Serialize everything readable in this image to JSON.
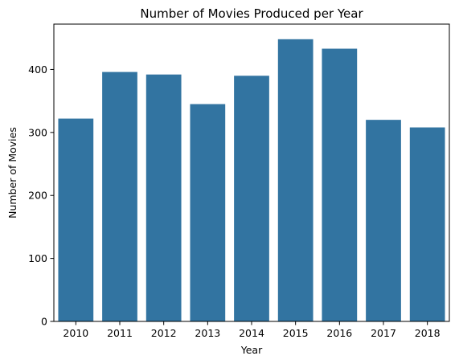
{
  "chart_data": {
    "type": "bar",
    "title": "Number of Movies Produced per Year",
    "xlabel": "Year",
    "ylabel": "Number of Movies",
    "categories": [
      "2010",
      "2011",
      "2012",
      "2013",
      "2014",
      "2015",
      "2016",
      "2017",
      "2018"
    ],
    "values": [
      322,
      396,
      392,
      345,
      390,
      448,
      433,
      320,
      308
    ],
    "ylim": [
      0,
      472
    ],
    "yticks": [
      0,
      100,
      200,
      300,
      400
    ],
    "ytick_labels": [
      "0",
      "100",
      "200",
      "300",
      "400"
    ],
    "grid": false,
    "bar_color": "#3274a1"
  }
}
